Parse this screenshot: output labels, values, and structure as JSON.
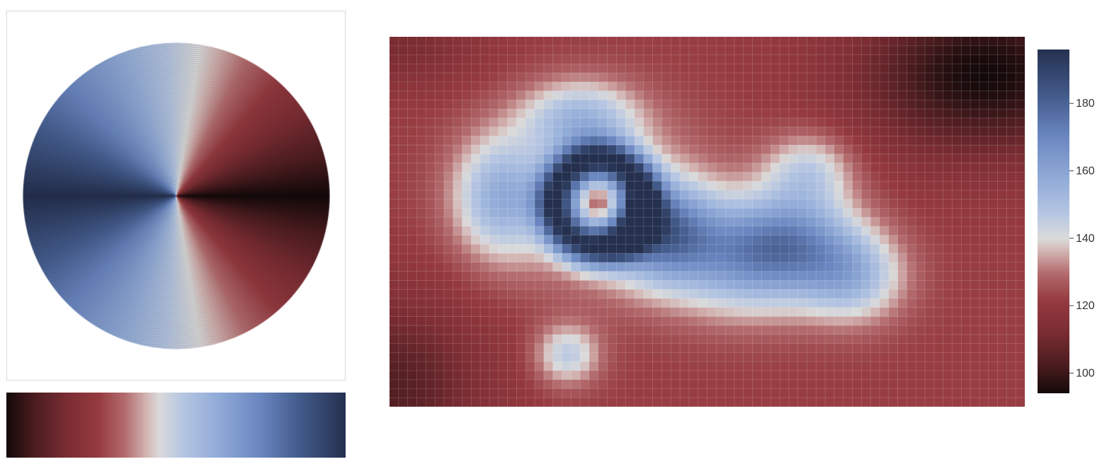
{
  "colors": {
    "colormap_stops": [
      [
        0.0,
        "#140909"
      ],
      [
        0.08,
        "#4a1c1f"
      ],
      [
        0.18,
        "#7b2d33"
      ],
      [
        0.27,
        "#953a40"
      ],
      [
        0.35,
        "#b46c6e"
      ],
      [
        0.41,
        "#d2b2b0"
      ],
      [
        0.45,
        "#dadada"
      ],
      [
        0.52,
        "#b6c6e2"
      ],
      [
        0.62,
        "#92acd8"
      ],
      [
        0.75,
        "#6a86c0"
      ],
      [
        0.86,
        "#445d8e"
      ],
      [
        1.0,
        "#25304f"
      ]
    ]
  },
  "chart_data": [
    {
      "type": "other",
      "name": "phase-wheel",
      "description_of_encoding": "angle mapped to colormap (dark at 0°, red toward top-right, light at vertical, blue left)"
    },
    {
      "type": "colormap-strip",
      "name": "colormap-preview"
    },
    {
      "type": "heatmap",
      "grid": {
        "cols": 70,
        "rows": 41
      },
      "colorbar": {
        "range": [
          94,
          196
        ],
        "ticks": [
          100,
          120,
          140,
          160,
          180
        ],
        "tick_labels": [
          "100",
          "120",
          "140",
          "160",
          "180"
        ]
      },
      "background_value": 122,
      "features": [
        {
          "kind": "ring",
          "cx": 0.33,
          "cy": 0.45,
          "r": 0.12,
          "w": 0.055,
          "amp": 55
        },
        {
          "kind": "blob",
          "cx": 0.33,
          "cy": 0.45,
          "rx": 0.16,
          "ry": 0.21,
          "amp": 22
        },
        {
          "kind": "blob",
          "cx": 0.3,
          "cy": 0.22,
          "rx": 0.09,
          "ry": 0.1,
          "amp": 28
        },
        {
          "kind": "blob",
          "cx": 0.17,
          "cy": 0.43,
          "rx": 0.07,
          "ry": 0.16,
          "amp": 28
        },
        {
          "kind": "blob",
          "cx": 0.43,
          "cy": 0.53,
          "rx": 0.08,
          "ry": 0.13,
          "amp": 40
        },
        {
          "kind": "blob",
          "cx": 0.56,
          "cy": 0.6,
          "rx": 0.12,
          "ry": 0.15,
          "amp": 35
        },
        {
          "kind": "blob",
          "cx": 0.64,
          "cy": 0.55,
          "rx": 0.1,
          "ry": 0.13,
          "amp": 30
        },
        {
          "kind": "blob",
          "cx": 0.73,
          "cy": 0.65,
          "rx": 0.08,
          "ry": 0.12,
          "amp": 28
        },
        {
          "kind": "blob",
          "cx": 0.66,
          "cy": 0.36,
          "rx": 0.07,
          "ry": 0.1,
          "amp": 22
        },
        {
          "kind": "blob",
          "cx": 0.28,
          "cy": 0.86,
          "rx": 0.05,
          "ry": 0.08,
          "amp": 24
        },
        {
          "kind": "dark",
          "cx": 0.94,
          "cy": 0.1,
          "rx": 0.2,
          "ry": 0.22,
          "amp": -28
        },
        {
          "kind": "dark",
          "cx": 0.0,
          "cy": 0.95,
          "rx": 0.15,
          "ry": 0.25,
          "amp": -18
        },
        {
          "kind": "dark",
          "cx": 0.02,
          "cy": 0.02,
          "rx": 0.12,
          "ry": 0.12,
          "amp": -10
        }
      ]
    }
  ]
}
